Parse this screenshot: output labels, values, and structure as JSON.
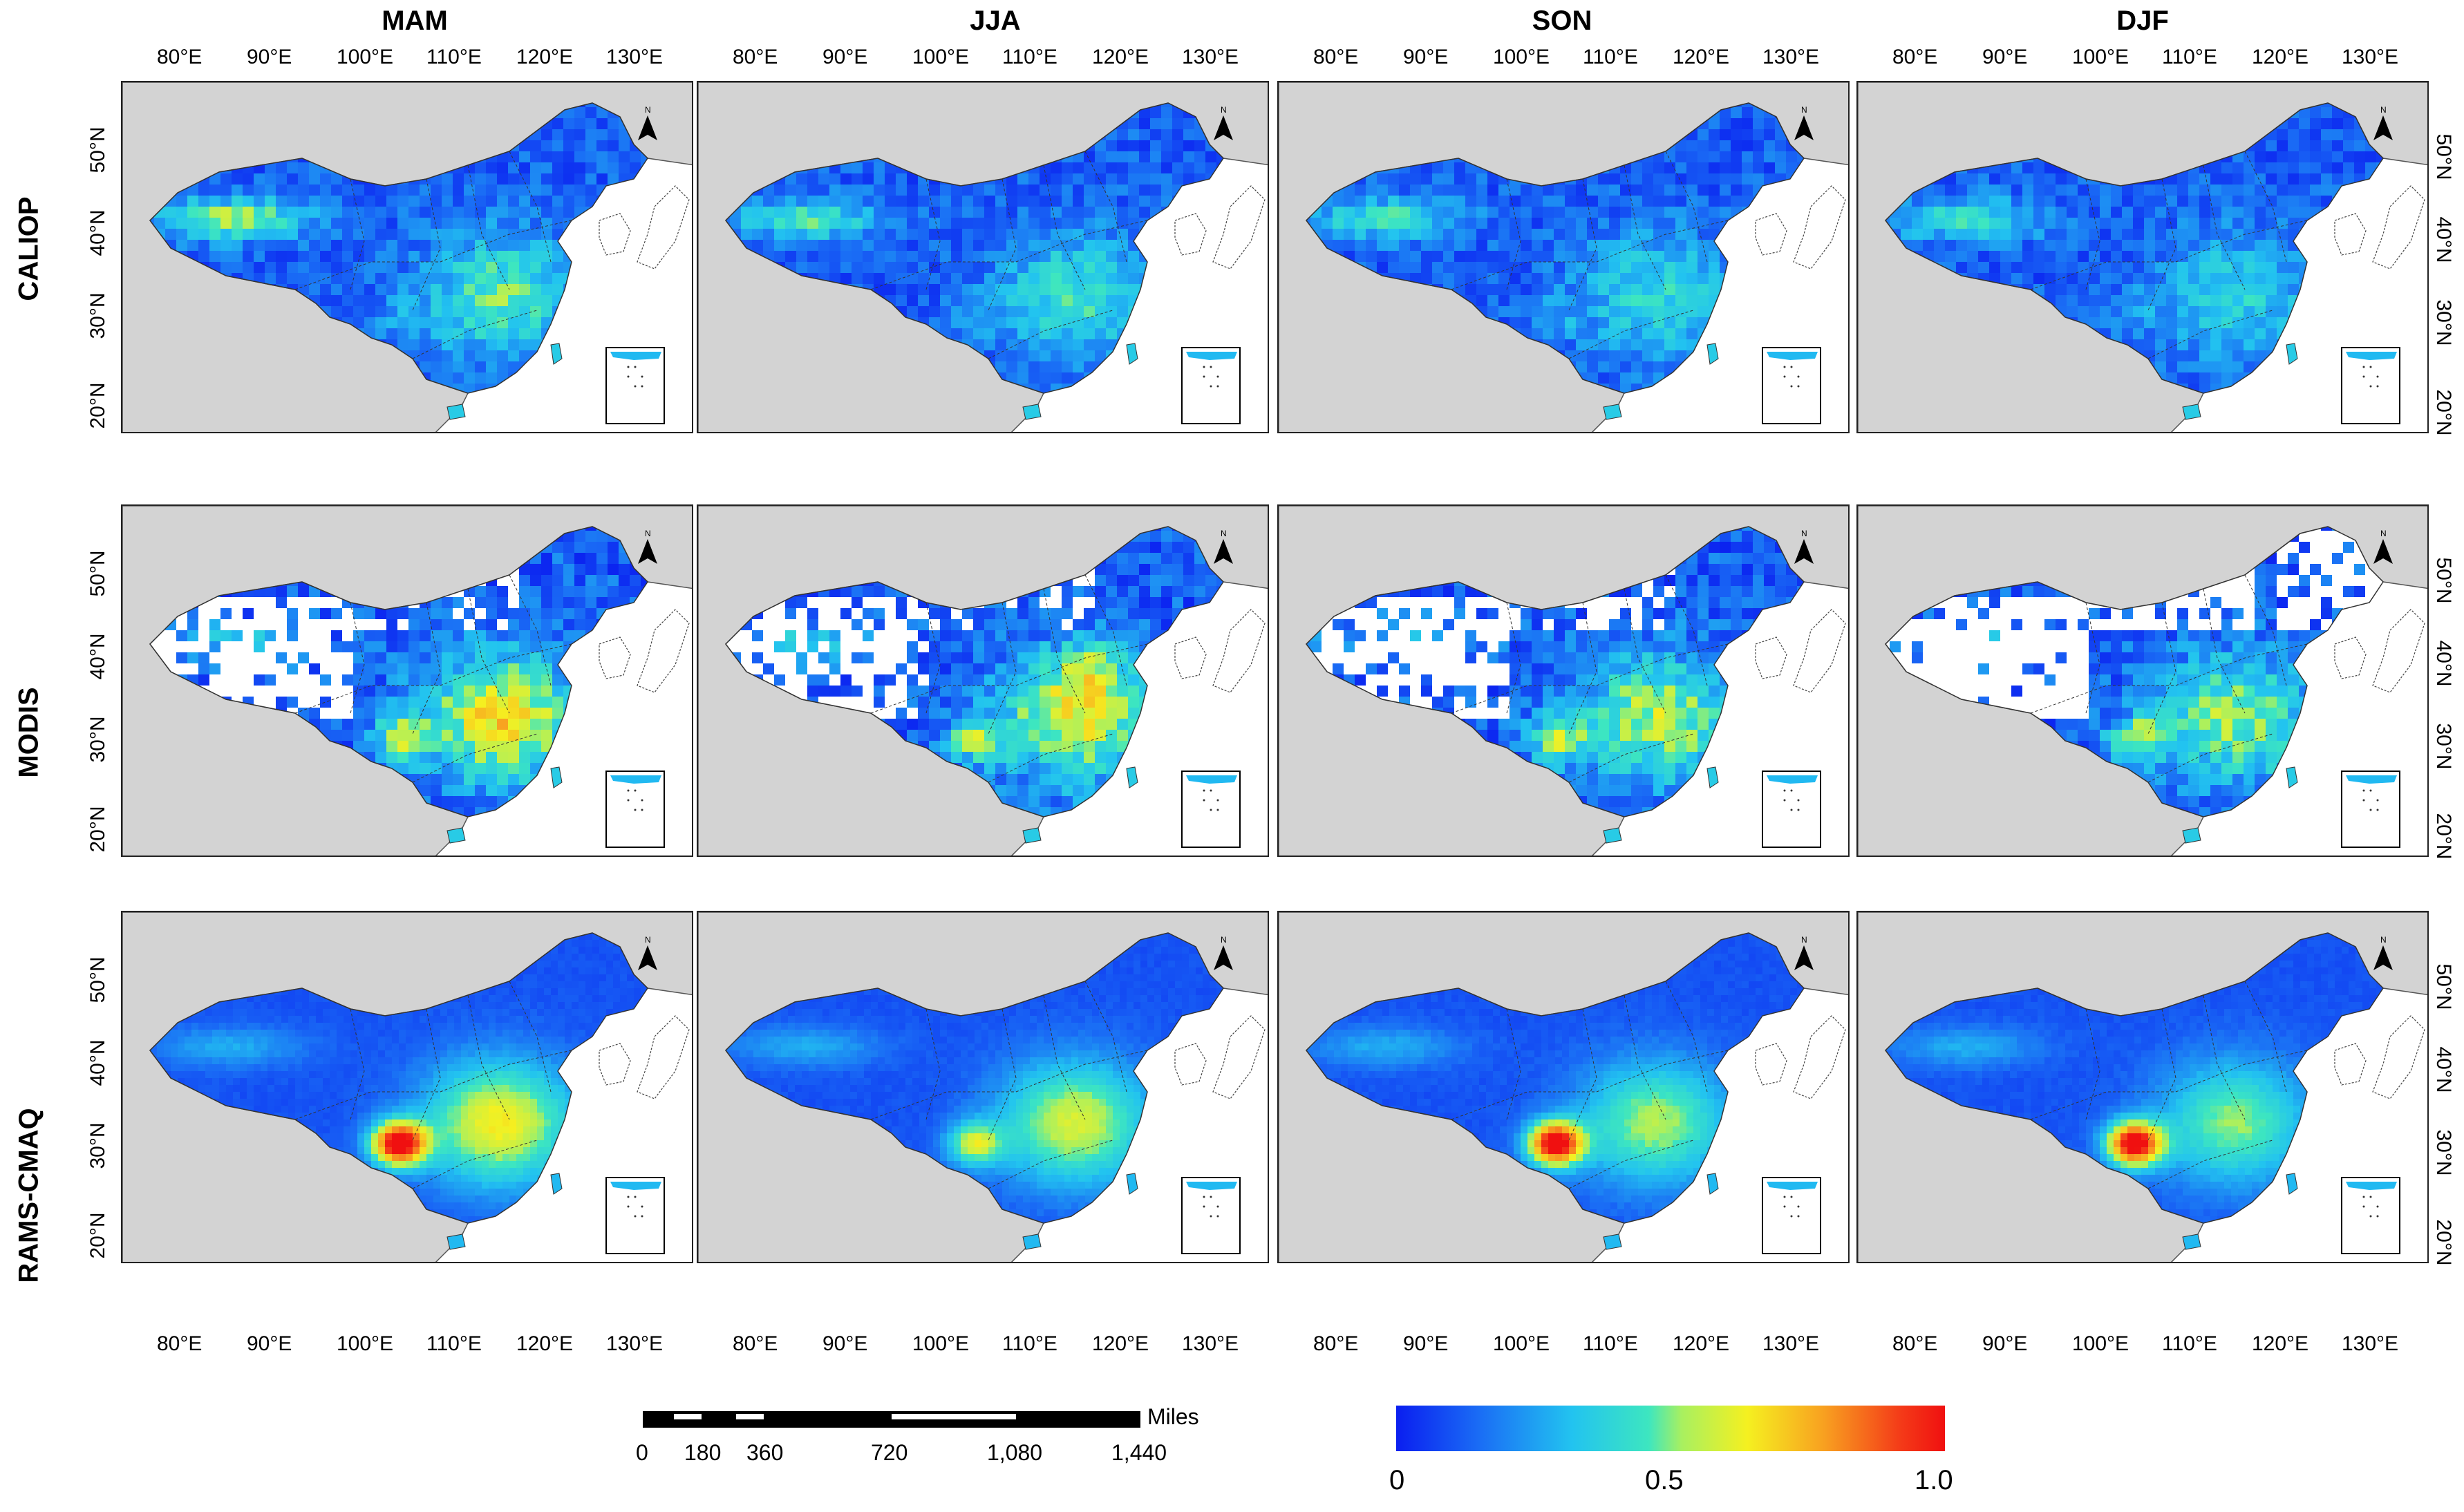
{
  "seasons": [
    "MAM",
    "JJA",
    "SON",
    "DJF"
  ],
  "rows": [
    "CALIOP",
    "MODIS",
    "RAMS-CMAQ"
  ],
  "lon_ticks": [
    "80°E",
    "90°E",
    "100°E",
    "110°E",
    "120°E",
    "130°E"
  ],
  "lat_ticks": [
    "50°N",
    "40°N",
    "30°N",
    "20°N"
  ],
  "north_label": "N",
  "scale_bar": {
    "unit": "Miles",
    "labels": [
      "0",
      "180",
      "360",
      "720",
      "1,080",
      "1,440"
    ]
  },
  "colorbar": {
    "labels": [
      "0",
      "0.5",
      "1.0"
    ],
    "colors": [
      "#0a1ef0",
      "#1a6cf5",
      "#22c3f0",
      "#3de6c0",
      "#a8f060",
      "#f5f020",
      "#f8a020",
      "#f43a18",
      "#f01010"
    ],
    "range": [
      0,
      1.0
    ]
  },
  "colors": {
    "land_outside": "#d3d3d3",
    "sea": "#ffffff",
    "no_data": "#ffffff"
  }
}
